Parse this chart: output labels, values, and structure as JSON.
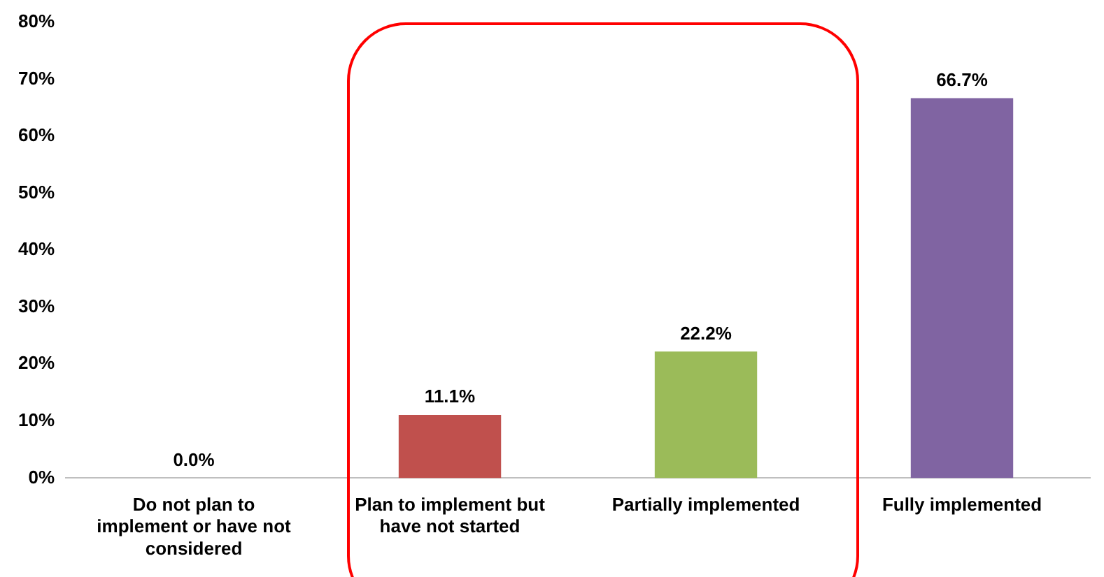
{
  "chart_data": {
    "type": "bar",
    "categories": [
      "Do not plan to implement or have not considered",
      "Plan to implement but have not started",
      "Partially implemented",
      "Fully implemented"
    ],
    "values": [
      0,
      11.1,
      22.2,
      66.7
    ],
    "colors": [
      "#4f81bd",
      "#c0504d",
      "#9bbb59",
      "#8064a2"
    ],
    "value_labels": [
      "0.0%",
      "11.1%",
      "22.2%",
      "66.7%"
    ],
    "ylim": [
      0,
      80
    ],
    "yticks": [
      {
        "value": 0,
        "label": "0%"
      },
      {
        "value": 10,
        "label": "10%"
      },
      {
        "value": 20,
        "label": "20%"
      },
      {
        "value": 30,
        "label": "30%"
      },
      {
        "value": 40,
        "label": "40%"
      },
      {
        "value": 50,
        "label": "50%"
      },
      {
        "value": 60,
        "label": "60%"
      },
      {
        "value": 70,
        "label": "70%"
      },
      {
        "value": 80,
        "label": "80%"
      }
    ],
    "grid": false,
    "legend": false
  }
}
